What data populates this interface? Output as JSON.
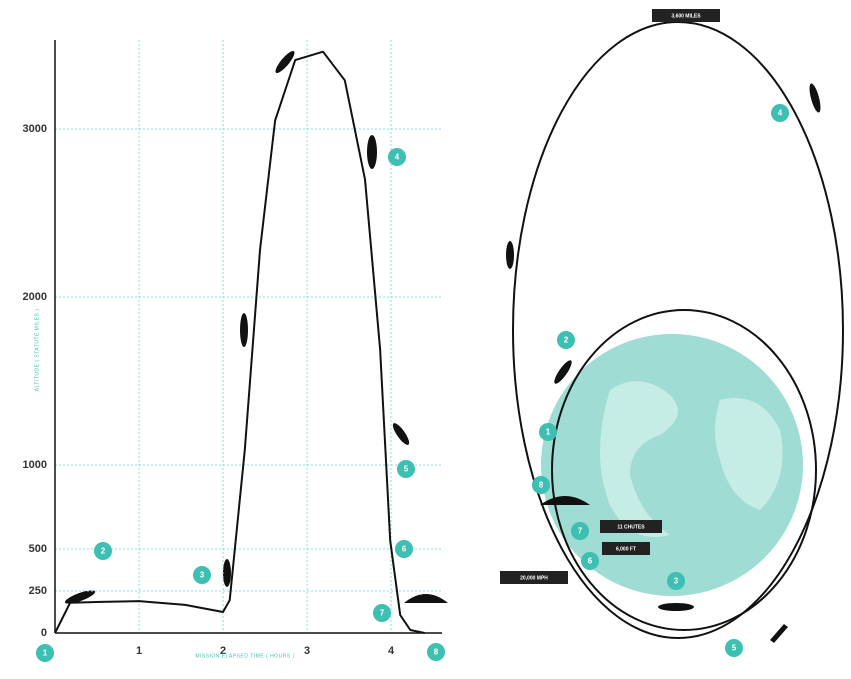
{
  "chart_data": {
    "type": "line",
    "y_label": "ALTITUDE ( STATUTE MILES )",
    "x_label": "MISSION ELAPSED TIME ( HOURS )",
    "x": [
      0,
      0.18,
      0.55,
      1,
      1.55,
      2,
      2.08,
      2.26,
      2.44,
      2.62,
      2.86,
      3.19,
      3.45,
      3.69,
      3.87,
      3.99,
      4.11,
      4.23,
      4.4
    ],
    "values": [
      0,
      180,
      185,
      190,
      167,
      125,
      195,
      1090,
      2280,
      3050,
      3410,
      3460,
      3290,
      2700,
      1690,
      550,
      107,
      18,
      0
    ],
    "color": "#111111",
    "grid": true,
    "grid_color": "#8fd8d8",
    "xlim": [
      0,
      4.6
    ],
    "ylim": [
      0,
      3500
    ],
    "xticks": [
      1,
      2,
      3,
      4
    ],
    "yticks": [
      0,
      250,
      500,
      1000,
      2000,
      3000
    ]
  },
  "chart_steps": [
    "1",
    "2",
    "3",
    "4",
    "5",
    "6",
    "7",
    "8"
  ],
  "orbit": {
    "labels": [
      "3,600 MILES",
      "11 CHUTES",
      "6,000 FT",
      "20,000 MPH"
    ],
    "steps": [
      "1",
      "2",
      "3",
      "4",
      "5",
      "6",
      "7",
      "8"
    ]
  }
}
